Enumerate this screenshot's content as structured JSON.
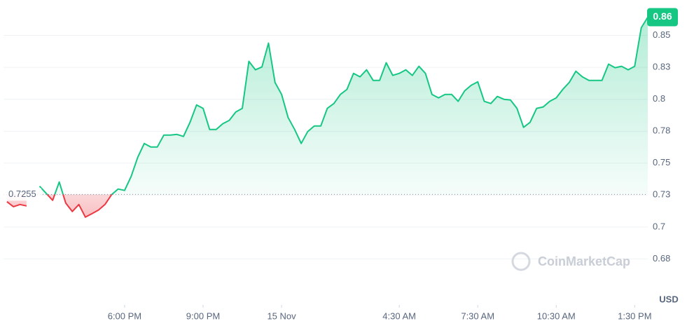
{
  "chart_data": {
    "type": "line",
    "x": [
      13.5,
      13.75,
      14,
      14.25,
      14.5,
      14.75,
      15,
      15.25,
      15.5,
      15.75,
      16,
      16.25,
      16.5,
      16.75,
      17,
      17.25,
      17.5,
      17.75,
      18,
      18.25,
      18.5,
      18.75,
      19,
      19.25,
      19.5,
      19.75,
      20,
      20.25,
      20.5,
      20.75,
      21,
      21.25,
      21.5,
      21.75,
      22,
      22.25,
      22.5,
      22.75,
      23,
      23.25,
      23.5,
      23.75,
      24,
      24.25,
      24.5,
      24.75,
      25,
      25.25,
      25.5,
      25.75,
      26,
      26.25,
      26.5,
      26.75,
      27,
      27.25,
      27.5,
      27.75,
      28,
      28.25,
      28.5,
      28.75,
      29,
      29.25,
      29.5,
      29.75,
      30,
      30.25,
      30.5,
      30.75,
      31,
      31.25,
      31.5,
      31.75,
      32,
      32.25,
      32.5,
      32.75,
      33,
      33.25,
      33.5,
      33.75,
      34,
      34.25,
      34.5,
      34.75,
      35,
      35.25,
      35.5,
      35.75,
      36,
      36.25,
      36.5,
      36.75,
      37,
      37.25,
      37.5,
      37.75,
      38
    ],
    "series": [
      {
        "color": "#16c784",
        "color_below": "#ea3943",
        "values": [
          0.7198,
          0.7159,
          0.7176,
          0.7165,
          null,
          0.7319,
          0.7264,
          0.7209,
          0.7352,
          0.7187,
          0.7121,
          0.7176,
          0.7077,
          0.7104,
          0.7132,
          0.7176,
          0.7253,
          0.7297,
          0.7286,
          0.7396,
          0.7544,
          0.7654,
          0.7626,
          0.7626,
          0.772,
          0.772,
          0.7725,
          0.7709,
          0.7819,
          0.7956,
          0.7929,
          0.7764,
          0.7764,
          0.7808,
          0.7835,
          0.7901,
          0.7929,
          0.8297,
          0.8231,
          0.8253,
          0.844,
          0.8132,
          0.8038,
          0.7857,
          0.7764,
          0.7654,
          0.7747,
          0.7791,
          0.7791,
          0.7929,
          0.7967,
          0.8038,
          0.8077,
          0.8203,
          0.8176,
          0.8231,
          0.8148,
          0.8148,
          0.8286,
          0.8187,
          0.8203,
          0.8231,
          0.8187,
          0.8258,
          0.8203,
          0.8038,
          0.8011,
          0.8038,
          0.8038,
          0.7984,
          0.8066,
          0.811,
          0.8137,
          0.7984,
          0.7967,
          0.8022,
          0.8,
          0.7995,
          0.7929,
          0.778,
          0.7819,
          0.7929,
          0.794,
          0.7984,
          0.8011,
          0.8077,
          0.8132,
          0.822,
          0.8176,
          0.8148,
          0.8148,
          0.8148,
          0.8275,
          0.8247,
          0.8258,
          0.8231,
          0.8258,
          0.856,
          0.8643
        ]
      }
    ],
    "baseline": 0.7255,
    "last_value_label": "0.86",
    "xlim": [
      13.37,
      38.0
    ],
    "xticks": [
      {
        "value": 18,
        "label": "6:00 PM"
      },
      {
        "value": 21,
        "label": "9:00 PM"
      },
      {
        "value": 24,
        "label": "15 Nov"
      },
      {
        "value": 28.5,
        "label": "4:30 AM"
      },
      {
        "value": 31.5,
        "label": "7:30 AM"
      },
      {
        "value": 34.5,
        "label": "10:30 AM"
      },
      {
        "value": 37.5,
        "label": "1:30 PM"
      }
    ],
    "ylim": [
      0.639,
      0.875
    ],
    "yticks": [
      {
        "value": 0.675,
        "label": "0.68"
      },
      0.7,
      {
        "value": 0.725,
        "label": "0.73"
      },
      0.75,
      {
        "value": 0.775,
        "label": "0.78"
      },
      0.8,
      {
        "value": 0.825,
        "label": "0.83"
      },
      0.85
    ],
    "y_unit": "USD",
    "watermark": "CoinMarketCap",
    "grid": true
  }
}
